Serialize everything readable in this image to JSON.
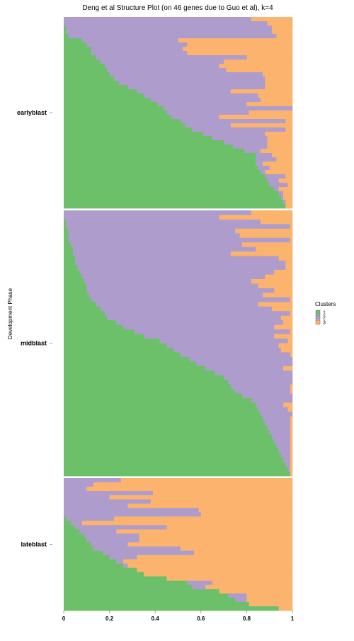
{
  "chart_data": {
    "type": "bar",
    "orientation": "horizontal-stacked",
    "title": "Deng et al Structure Plot (on 46 genes due to Guo et al), k=4",
    "ylabel": "Development Phase",
    "xlim": [
      0,
      1
    ],
    "x_ticks": [
      "0",
      "0.2",
      "0.4",
      "0.6",
      "0.8",
      "1"
    ],
    "legend": {
      "title": "Clusters",
      "position": "right",
      "entries": [
        {
          "label": "1",
          "color": "#6cc06a"
        },
        {
          "label": "2",
          "color": "#ae9ccc"
        },
        {
          "label": "3",
          "color": "#fbb36e"
        }
      ]
    },
    "panels": [
      {
        "label": "earlyblast",
        "samples": [
          [
            0.0,
            0.82,
            0.18
          ],
          [
            0.0,
            0.89,
            0.11
          ],
          [
            0.01,
            0.9,
            0.09
          ],
          [
            0.01,
            0.91,
            0.09
          ],
          [
            0.02,
            0.91,
            0.07
          ],
          [
            0.08,
            0.42,
            0.5
          ],
          [
            0.1,
            0.44,
            0.46
          ],
          [
            0.12,
            0.4,
            0.48
          ],
          [
            0.12,
            0.42,
            0.46
          ],
          [
            0.14,
            0.66,
            0.2
          ],
          [
            0.16,
            0.54,
            0.3
          ],
          [
            0.18,
            0.5,
            0.32
          ],
          [
            0.19,
            0.52,
            0.29
          ],
          [
            0.2,
            0.67,
            0.13
          ],
          [
            0.22,
            0.66,
            0.12
          ],
          [
            0.24,
            0.64,
            0.12
          ],
          [
            0.28,
            0.6,
            0.12
          ],
          [
            0.32,
            0.41,
            0.27
          ],
          [
            0.35,
            0.5,
            0.15
          ],
          [
            0.38,
            0.48,
            0.14
          ],
          [
            0.41,
            0.39,
            0.2
          ],
          [
            0.44,
            0.57,
            0.0
          ],
          [
            0.45,
            0.36,
            0.19
          ],
          [
            0.47,
            0.21,
            0.32
          ],
          [
            0.51,
            0.46,
            0.03
          ],
          [
            0.53,
            0.2,
            0.27
          ],
          [
            0.56,
            0.41,
            0.03
          ],
          [
            0.61,
            0.27,
            0.12
          ],
          [
            0.65,
            0.24,
            0.11
          ],
          [
            0.7,
            0.19,
            0.11
          ],
          [
            0.74,
            0.15,
            0.11
          ],
          [
            0.79,
            0.07,
            0.14
          ],
          [
            0.84,
            0.07,
            0.09
          ],
          [
            0.84,
            0.09,
            0.07
          ],
          [
            0.84,
            0.03,
            0.13
          ],
          [
            0.85,
            0.05,
            0.1
          ],
          [
            0.86,
            0.02,
            0.12
          ],
          [
            0.88,
            0.09,
            0.03
          ],
          [
            0.89,
            0.05,
            0.06
          ],
          [
            0.9,
            0.08,
            0.02
          ],
          [
            0.92,
            0.02,
            0.06
          ],
          [
            0.94,
            0.02,
            0.04
          ],
          [
            0.95,
            0.01,
            0.04
          ],
          [
            0.96,
            0.01,
            0.03
          ],
          [
            0.97,
            0.0,
            0.03
          ]
        ]
      },
      {
        "label": "midblast",
        "samples": [
          [
            0.0,
            0.82,
            0.18
          ],
          [
            0.0,
            0.68,
            0.32
          ],
          [
            0.01,
            0.85,
            0.14
          ],
          [
            0.01,
            0.98,
            0.01
          ],
          [
            0.02,
            0.73,
            0.25
          ],
          [
            0.02,
            0.75,
            0.23
          ],
          [
            0.02,
            0.97,
            0.01
          ],
          [
            0.03,
            0.75,
            0.22
          ],
          [
            0.04,
            0.8,
            0.16
          ],
          [
            0.04,
            0.69,
            0.27
          ],
          [
            0.05,
            0.89,
            0.06
          ],
          [
            0.05,
            0.92,
            0.03
          ],
          [
            0.06,
            0.91,
            0.03
          ],
          [
            0.07,
            0.85,
            0.08
          ],
          [
            0.08,
            0.8,
            0.12
          ],
          [
            0.09,
            0.73,
            0.18
          ],
          [
            0.1,
            0.75,
            0.15
          ],
          [
            0.1,
            0.82,
            0.08
          ],
          [
            0.11,
            0.76,
            0.13
          ],
          [
            0.12,
            0.87,
            0.01
          ],
          [
            0.14,
            0.71,
            0.15
          ],
          [
            0.16,
            0.75,
            0.09
          ],
          [
            0.18,
            0.81,
            0.01
          ],
          [
            0.19,
            0.76,
            0.05
          ],
          [
            0.23,
            0.73,
            0.04
          ],
          [
            0.26,
            0.66,
            0.08
          ],
          [
            0.31,
            0.68,
            0.01
          ],
          [
            0.35,
            0.57,
            0.08
          ],
          [
            0.42,
            0.56,
            0.02
          ],
          [
            0.45,
            0.49,
            0.06
          ],
          [
            0.48,
            0.47,
            0.05
          ],
          [
            0.51,
            0.48,
            0.01
          ],
          [
            0.55,
            0.45,
            0.0
          ],
          [
            0.58,
            0.42,
            0.0
          ],
          [
            0.62,
            0.34,
            0.04
          ],
          [
            0.66,
            0.34,
            0.0
          ],
          [
            0.7,
            0.3,
            0.0
          ],
          [
            0.72,
            0.28,
            0.0
          ],
          [
            0.73,
            0.26,
            0.01
          ],
          [
            0.75,
            0.24,
            0.01
          ],
          [
            0.78,
            0.22,
            0.0
          ],
          [
            0.82,
            0.18,
            0.0
          ],
          [
            0.84,
            0.12,
            0.04
          ],
          [
            0.85,
            0.13,
            0.02
          ],
          [
            0.86,
            0.14,
            0.0
          ],
          [
            0.87,
            0.12,
            0.01
          ],
          [
            0.88,
            0.11,
            0.01
          ],
          [
            0.89,
            0.1,
            0.01
          ],
          [
            0.9,
            0.09,
            0.01
          ],
          [
            0.91,
            0.08,
            0.01
          ],
          [
            0.92,
            0.07,
            0.01
          ],
          [
            0.93,
            0.06,
            0.01
          ],
          [
            0.94,
            0.05,
            0.01
          ],
          [
            0.95,
            0.04,
            0.01
          ],
          [
            0.96,
            0.03,
            0.01
          ],
          [
            0.97,
            0.02,
            0.01
          ],
          [
            0.98,
            0.01,
            0.01
          ],
          [
            0.99,
            0.0,
            0.01
          ]
        ]
      },
      {
        "label": "lateblast",
        "samples": [
          [
            0.0,
            0.25,
            0.75
          ],
          [
            0.0,
            0.13,
            0.87
          ],
          [
            0.0,
            0.1,
            0.9
          ],
          [
            0.0,
            0.39,
            0.61
          ],
          [
            0.0,
            0.2,
            0.8
          ],
          [
            0.0,
            0.38,
            0.62
          ],
          [
            0.0,
            0.28,
            0.72
          ],
          [
            0.0,
            0.59,
            0.41
          ],
          [
            0.0,
            0.6,
            0.4
          ],
          [
            0.01,
            0.21,
            0.78
          ],
          [
            0.03,
            0.05,
            0.92
          ],
          [
            0.05,
            0.4,
            0.55
          ],
          [
            0.07,
            0.16,
            0.77
          ],
          [
            0.09,
            0.24,
            0.67
          ],
          [
            0.1,
            0.23,
            0.67
          ],
          [
            0.12,
            0.16,
            0.72
          ],
          [
            0.13,
            0.38,
            0.49
          ],
          [
            0.17,
            0.4,
            0.43
          ],
          [
            0.2,
            0.12,
            0.68
          ],
          [
            0.23,
            0.03,
            0.74
          ],
          [
            0.26,
            0.02,
            0.72
          ],
          [
            0.32,
            0.0,
            0.68
          ],
          [
            0.35,
            0.0,
            0.65
          ],
          [
            0.45,
            0.0,
            0.55
          ],
          [
            0.54,
            0.11,
            0.35
          ],
          [
            0.56,
            0.06,
            0.38
          ],
          [
            0.68,
            0.0,
            0.32
          ],
          [
            0.72,
            0.08,
            0.2
          ],
          [
            0.75,
            0.05,
            0.2
          ],
          [
            0.81,
            0.0,
            0.19
          ],
          [
            0.94,
            0.0,
            0.06
          ]
        ]
      }
    ]
  }
}
